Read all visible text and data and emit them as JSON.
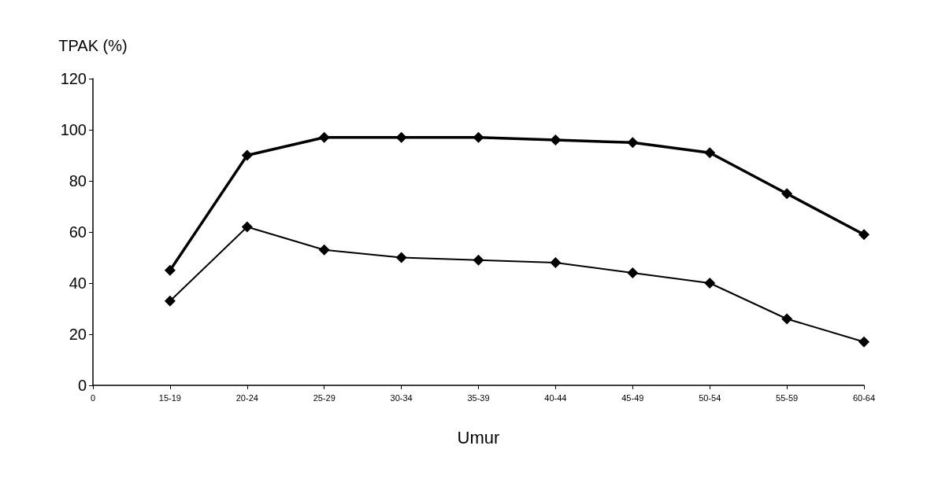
{
  "chart_data": {
    "type": "line",
    "xlabel": "Umur",
    "ylabel": "TPAK (%)",
    "categories": [
      "0",
      "15-19",
      "20-24",
      "25-29",
      "30-34",
      "35-39",
      "40-44",
      "45-49",
      "50-54",
      "55-59",
      "60-64"
    ],
    "series": [
      {
        "color": "#000000",
        "values": [
          null,
          45,
          90,
          97,
          97,
          97,
          96,
          95,
          91,
          75,
          59
        ]
      },
      {
        "color": "#000000",
        "values": [
          null,
          33,
          62,
          53,
          50,
          49,
          48,
          44,
          40,
          26,
          17
        ]
      }
    ],
    "ylim": [
      0,
      120
    ],
    "yticks": [
      0,
      20,
      40,
      60,
      80,
      100,
      120
    ],
    "grid": false,
    "marker": "diamond",
    "line_style": "solid"
  }
}
